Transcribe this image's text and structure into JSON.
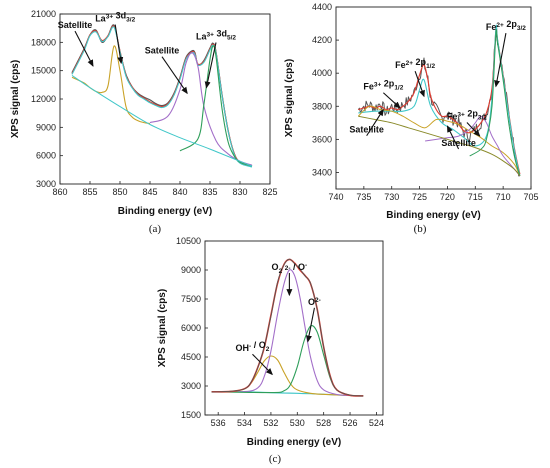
{
  "chart_data": [
    {
      "type": "line",
      "panel_label": "(a)",
      "xlabel": "Binding energy (eV)",
      "ylabel": "XPS signal (cps)",
      "x_reversed": true,
      "xlim": [
        860,
        825
      ],
      "ylim": [
        3000,
        21000
      ],
      "xticks": [
        860,
        855,
        850,
        845,
        840,
        835,
        830,
        825
      ],
      "yticks": [
        3000,
        6000,
        9000,
        12000,
        15000,
        18000,
        21000
      ],
      "annotations": [
        {
          "text": "Satellite",
          "x": 857.5,
          "y": 19500,
          "ax": 854.5,
          "ay": 15500
        },
        {
          "text": "La3+ 3d3/2",
          "x": 850.8,
          "y": 20200,
          "ax": 849.8,
          "ay": 15800
        },
        {
          "text": "Satellite",
          "x": 843.0,
          "y": 16800,
          "ax": 838.8,
          "ay": 12600
        },
        {
          "text": "La3+ 3d5/2",
          "x": 834.0,
          "y": 18300,
          "ax": 835.6,
          "ay": 13200
        }
      ],
      "series": [
        {
          "color": "#555555",
          "width": 1.2,
          "x": [
            858,
            856,
            855,
            854,
            853,
            852,
            851,
            850,
            849,
            848,
            847,
            846,
            845,
            844,
            843,
            842,
            841,
            840,
            839,
            838,
            837.5,
            837,
            836,
            835,
            834.5,
            834,
            833,
            832,
            831,
            830,
            828
          ],
          "y": [
            14800,
            17300,
            18800,
            19300,
            18000,
            18700,
            19800,
            17000,
            14600,
            13300,
            12600,
            12200,
            11900,
            11500,
            11300,
            11600,
            12600,
            14300,
            16400,
            17100,
            16900,
            15600,
            16100,
            17400,
            17900,
            17000,
            12500,
            8700,
            6300,
            5300,
            4900
          ]
        },
        {
          "color": "#e03a2f",
          "width": 1.1,
          "x": [
            858,
            856,
            855,
            854,
            853,
            852,
            851,
            850,
            849,
            848,
            847,
            846,
            845,
            844,
            843,
            842,
            841,
            840,
            839,
            838,
            837.5,
            837,
            836,
            835,
            834.5,
            834,
            833,
            832,
            831,
            830,
            828
          ],
          "y": [
            14700,
            17200,
            18800,
            19200,
            18200,
            18700,
            19700,
            17100,
            14500,
            13300,
            12500,
            12100,
            11700,
            11400,
            11200,
            11500,
            12500,
            14200,
            16300,
            17000,
            16800,
            15700,
            16000,
            17300,
            17800,
            17000,
            12500,
            8800,
            6300,
            5300,
            4900
          ]
        },
        {
          "color": "#40c7c9",
          "width": 1.1,
          "x": [
            858,
            856,
            855,
            854,
            853,
            852,
            851,
            850,
            849,
            848,
            847,
            846,
            845,
            844,
            843,
            842,
            841,
            840,
            839,
            838,
            837.5,
            837,
            836,
            835,
            834.5,
            834,
            833,
            832,
            831,
            830,
            828
          ],
          "y": [
            14600,
            17100,
            18700,
            19100,
            18100,
            18600,
            19600,
            17000,
            14400,
            13200,
            12400,
            12000,
            11600,
            11300,
            11100,
            11400,
            12400,
            14100,
            16200,
            16900,
            16700,
            15600,
            15900,
            17200,
            17700,
            16900,
            12400,
            8700,
            6200,
            5200,
            4800
          ]
        },
        {
          "color": "#c9a227",
          "width": 1.1,
          "x": [
            858,
            856,
            855,
            854,
            853,
            852,
            851,
            850,
            849,
            848,
            847,
            846,
            845
          ],
          "y": [
            14300,
            13700,
            13200,
            12800,
            12700,
            13400,
            17600,
            15000,
            11200,
            10100,
            9700,
            9500,
            9400
          ]
        },
        {
          "color": "#a36fc9",
          "width": 1.1,
          "x": [
            845,
            842,
            840,
            839,
            838,
            837,
            836,
            834,
            832,
            830,
            828
          ],
          "y": [
            9500,
            10200,
            13000,
            15800,
            16900,
            15400,
            11200,
            7600,
            6200,
            5400,
            5000
          ]
        },
        {
          "color": "#2e9e5a",
          "width": 1.1,
          "x": [
            840,
            837,
            836,
            835,
            834.5,
            834,
            833,
            832,
            831,
            830,
            828
          ],
          "y": [
            6500,
            7800,
            11500,
            16200,
            17600,
            16500,
            11000,
            7500,
            6000,
            5300,
            4900
          ]
        },
        {
          "color": "#40c7c9",
          "width": 1.0,
          "x": [
            858,
            855,
            850,
            845,
            840,
            835,
            830,
            828
          ],
          "y": [
            14500,
            13200,
            11200,
            9300,
            7900,
            6700,
            5400,
            4900
          ]
        }
      ]
    },
    {
      "type": "line",
      "panel_label": "(b)",
      "xlabel": "Binding energy (eV)",
      "ylabel": "XPS signal (cps)",
      "x_reversed": true,
      "xlim": [
        740,
        705
      ],
      "ylim": [
        3300,
        4400
      ],
      "xticks": [
        740,
        735,
        730,
        725,
        720,
        715,
        710,
        705
      ],
      "yticks": [
        3400,
        3600,
        3800,
        4000,
        4200,
        4400
      ],
      "annotations": [
        {
          "text": "Fe3+ 2p1/2",
          "x": 731.5,
          "y": 3900,
          "ax": 728.5,
          "ay": 3790
        },
        {
          "text": "Fe2+ 2p1/2",
          "x": 725.8,
          "y": 4030,
          "ax": 724.2,
          "ay": 3860
        },
        {
          "text": "Fe2+ 2p3/2",
          "x": 709.5,
          "y": 4260,
          "ax": 711.3,
          "ay": 3920
        },
        {
          "text": "Satellite",
          "x": 734.5,
          "y": 3640,
          "ax": 731.5,
          "ay": 3780
        },
        {
          "text": "Fe3+ 2p3/2",
          "x": 716.5,
          "y": 3720,
          "ax": 714.2,
          "ay": 3620
        },
        {
          "text": "Satellite",
          "x": 718.0,
          "y": 3560,
          "ax": 720.0,
          "ay": 3680
        }
      ],
      "series": [
        {
          "color": "#555555",
          "width": 1.0,
          "noisy": true,
          "x": [
            736,
            735,
            734,
            733,
            732,
            731,
            730,
            729,
            728,
            727,
            726,
            725,
            724.2,
            723.5,
            723,
            722,
            721,
            720,
            719,
            718,
            717,
            716,
            715,
            714,
            713,
            712,
            711.3,
            711,
            710,
            709,
            708,
            707
          ],
          "y": [
            3780,
            3800,
            3810,
            3790,
            3820,
            3760,
            3800,
            3780,
            3810,
            3830,
            3880,
            3990,
            4060,
            3960,
            3850,
            3780,
            3730,
            3760,
            3720,
            3700,
            3640,
            3620,
            3660,
            3700,
            3750,
            3900,
            4270,
            4200,
            3990,
            3760,
            3540,
            3380
          ]
        },
        {
          "color": "#e03a2f",
          "width": 1.1,
          "x": [
            736,
            735,
            734,
            733,
            732,
            731,
            730,
            729,
            728,
            727,
            726,
            725,
            724.2,
            723.5,
            723,
            722,
            721,
            720,
            719,
            718,
            717,
            716,
            715,
            714,
            713,
            712,
            711.3,
            711,
            710,
            709,
            708,
            707
          ],
          "y": [
            3780,
            3790,
            3800,
            3790,
            3800,
            3780,
            3790,
            3780,
            3800,
            3830,
            3880,
            3990,
            4050,
            3960,
            3860,
            3780,
            3740,
            3740,
            3720,
            3690,
            3650,
            3640,
            3660,
            3700,
            3760,
            3910,
            4260,
            4200,
            3990,
            3760,
            3550,
            3390
          ]
        },
        {
          "color": "#40c7c9",
          "width": 1.1,
          "x": [
            736,
            733,
            730,
            728,
            726,
            725,
            724.2,
            723,
            721,
            719,
            717,
            715,
            713,
            712,
            711.3,
            711,
            710,
            709,
            708,
            707
          ],
          "y": [
            3760,
            3770,
            3770,
            3770,
            3800,
            3900,
            3960,
            3800,
            3700,
            3660,
            3610,
            3560,
            3620,
            3850,
            4270,
            4200,
            3980,
            3750,
            3540,
            3380
          ]
        },
        {
          "color": "#c9a227",
          "width": 1.0,
          "x": [
            736,
            734,
            732,
            730,
            728,
            726,
            724,
            722,
            720,
            718,
            716,
            714,
            712,
            710,
            708,
            707
          ],
          "y": [
            3740,
            3800,
            3780,
            3770,
            3740,
            3700,
            3670,
            3720,
            3710,
            3690,
            3650,
            3610,
            3560,
            3520,
            3450,
            3380
          ]
        },
        {
          "color": "#a36fc9",
          "width": 1.0,
          "x": [
            724,
            722,
            720,
            718,
            716,
            715,
            714,
            713,
            712,
            711,
            710,
            708,
            707
          ],
          "y": [
            3590,
            3600,
            3610,
            3620,
            3660,
            3700,
            3740,
            3700,
            3620,
            3560,
            3500,
            3420,
            3380
          ]
        },
        {
          "color": "#2e9e5a",
          "width": 1.0,
          "x": [
            716,
            714,
            713,
            712,
            711.3,
            711,
            710,
            709,
            708,
            707
          ],
          "y": [
            3500,
            3540,
            3600,
            3800,
            4240,
            4180,
            3960,
            3700,
            3500,
            3380
          ]
        },
        {
          "color": "#8a8a2a",
          "width": 1.0,
          "x": [
            736,
            733,
            730,
            727,
            724,
            721,
            718,
            715,
            712,
            710,
            708,
            707
          ],
          "y": [
            3740,
            3720,
            3700,
            3670,
            3640,
            3610,
            3580,
            3550,
            3510,
            3470,
            3420,
            3380
          ]
        }
      ]
    },
    {
      "type": "line",
      "panel_label": "(c)",
      "xlabel": "Binding energy (eV)",
      "ylabel": "XPS signal (cps)",
      "x_reversed": true,
      "xlim": [
        537,
        523.5
      ],
      "ylim": [
        1500,
        10500
      ],
      "xticks": [
        536,
        534,
        532,
        530,
        528,
        526,
        524
      ],
      "yticks": [
        1500,
        3000,
        4500,
        6000,
        7500,
        9000,
        10500
      ],
      "annotations": [
        {
          "text": "O2 2- / O-",
          "x": 530.6,
          "y": 9000,
          "ax": 530.6,
          "ay": 7700
        },
        {
          "text": "OH- / O2",
          "x": 533.4,
          "y": 4800,
          "ax": 531.9,
          "ay": 3600
        },
        {
          "text": "O2-",
          "x": 528.7,
          "y": 7200,
          "ax": 529.2,
          "ay": 5300
        }
      ],
      "series": [
        {
          "color": "#40c7c9",
          "width": 1.2,
          "x": [
            536.5,
            535,
            534,
            533,
            532,
            531,
            530,
            529,
            528,
            527,
            526,
            525
          ],
          "y": [
            2700,
            2700,
            2700,
            2680,
            2660,
            2640,
            2620,
            2600,
            2570,
            2540,
            2510,
            2490
          ]
        },
        {
          "color": "#c9a227",
          "width": 1.1,
          "x": [
            536.5,
            535,
            534,
            533.5,
            533,
            532.5,
            532,
            531.5,
            531,
            530.5,
            530,
            529,
            528,
            526,
            525
          ],
          "y": [
            2700,
            2720,
            2850,
            3150,
            3700,
            4300,
            4550,
            4350,
            3700,
            3100,
            2800,
            2620,
            2570,
            2510,
            2490
          ]
        },
        {
          "color": "#a36fc9",
          "width": 1.1,
          "x": [
            536.5,
            534,
            533,
            532.5,
            532,
            531.5,
            531,
            530.6,
            530.2,
            529.8,
            529.4,
            529,
            528.5,
            528,
            527,
            526,
            525
          ],
          "y": [
            2700,
            2710,
            2900,
            3500,
            4800,
            6700,
            8300,
            9000,
            8700,
            7600,
            6000,
            4500,
            3300,
            2800,
            2560,
            2510,
            2490
          ]
        },
        {
          "color": "#2e9e5a",
          "width": 1.1,
          "x": [
            536.5,
            532,
            531,
            530.5,
            530,
            529.5,
            529,
            528.5,
            528,
            527.5,
            527,
            526,
            525
          ],
          "y": [
            2700,
            2660,
            2750,
            3100,
            4000,
            5300,
            6100,
            5800,
            4600,
            3400,
            2800,
            2520,
            2490
          ]
        },
        {
          "color": "#e03a2f",
          "width": 1.6,
          "x": [
            536.5,
            535,
            534,
            533.5,
            533,
            532.5,
            532,
            531.5,
            531,
            530.6,
            530.2,
            529.8,
            529.4,
            529,
            528.5,
            528,
            527.5,
            527,
            526,
            525
          ],
          "y": [
            2700,
            2720,
            2860,
            3180,
            3950,
            5000,
            6650,
            8300,
            9300,
            9550,
            9350,
            9000,
            8700,
            8300,
            7000,
            5000,
            3500,
            2800,
            2520,
            2490
          ]
        },
        {
          "color": "#555555",
          "width": 0.9,
          "x": [
            536.5,
            535,
            534,
            533.5,
            533,
            532.5,
            532,
            531.5,
            531,
            530.6,
            530.2,
            529.8,
            529.4,
            529,
            528.5,
            528,
            527.5,
            527,
            526,
            525
          ],
          "y": [
            2690,
            2730,
            2850,
            3200,
            3930,
            5050,
            6600,
            8350,
            9280,
            9560,
            9320,
            9050,
            8680,
            8320,
            6980,
            5020,
            3480,
            2790,
            2530,
            2480
          ]
        }
      ]
    }
  ]
}
